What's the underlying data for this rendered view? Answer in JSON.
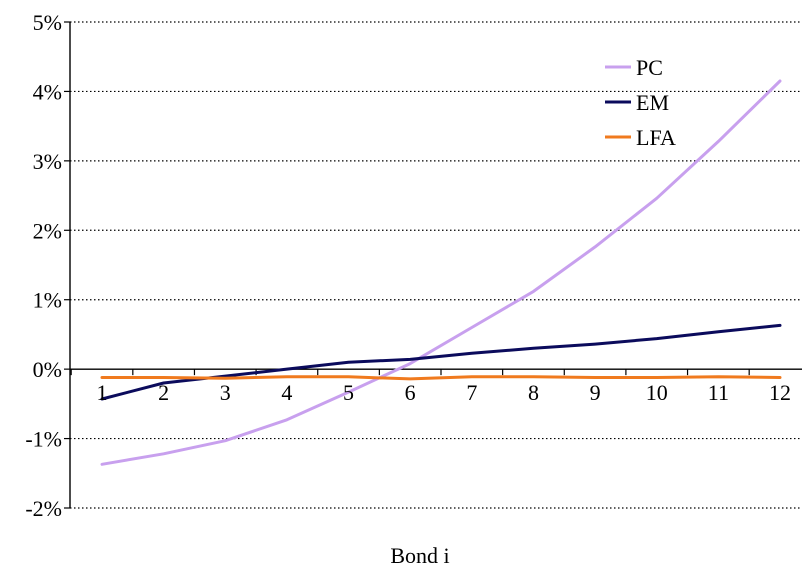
{
  "chart_data": {
    "type": "line",
    "title": "",
    "xlabel": "Bond i",
    "ylabel": "",
    "x": [
      1,
      2,
      3,
      4,
      5,
      6,
      7,
      8,
      9,
      10,
      11,
      12
    ],
    "x_tick_labels": [
      "1",
      "2",
      "3",
      "4",
      "5",
      "6",
      "7",
      "8",
      "9",
      "10",
      "11",
      "12"
    ],
    "y_ticks": [
      -2,
      -1,
      0,
      1,
      2,
      3,
      4,
      5
    ],
    "y_tick_labels": [
      "-2%",
      "-1%",
      "0%",
      "1%",
      "2%",
      "3%",
      "4%",
      "5%"
    ],
    "ylim": [
      -2,
      5
    ],
    "grid": "horizontal dotted",
    "legend_position": "top-right",
    "series": [
      {
        "name": "PC",
        "color": "#c8a0ee",
        "values": [
          -1.37,
          -1.22,
          -1.03,
          -0.73,
          -0.33,
          0.08,
          0.6,
          1.12,
          1.76,
          2.46,
          3.28,
          4.15
        ]
      },
      {
        "name": "EM",
        "color": "#0b0b5c",
        "values": [
          -0.43,
          -0.2,
          -0.1,
          0.0,
          0.1,
          0.14,
          0.23,
          0.3,
          0.36,
          0.44,
          0.54,
          0.63
        ]
      },
      {
        "name": "LFA",
        "color": "#f07a1e",
        "values": [
          -0.12,
          -0.12,
          -0.13,
          -0.11,
          -0.11,
          -0.14,
          -0.11,
          -0.11,
          -0.12,
          -0.12,
          -0.11,
          -0.12
        ]
      }
    ]
  }
}
